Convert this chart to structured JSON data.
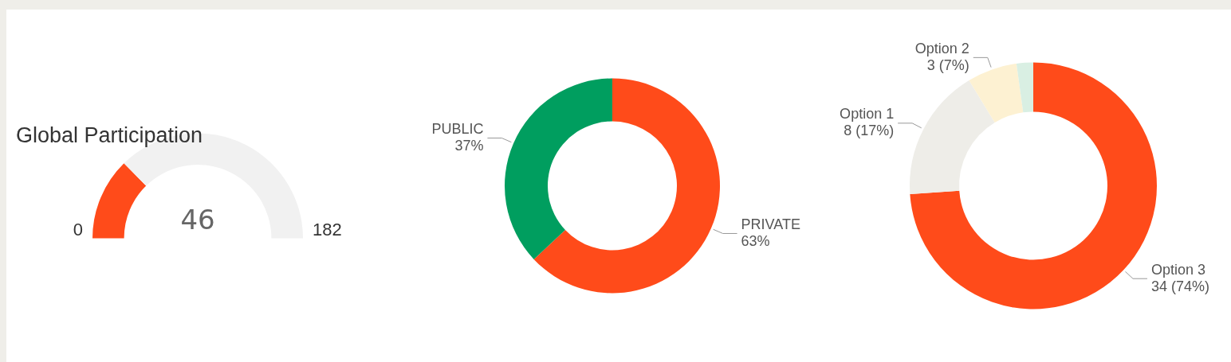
{
  "chart_data": [
    {
      "type": "other",
      "title": "Global Participation",
      "values": [
        46
      ],
      "color": "#ff4b1a",
      "annotations": [
        "0",
        "182"
      ],
      "data_labels": true
    },
    {
      "type": "donut",
      "categories": [
        "PRIVATE",
        "PUBLIC"
      ],
      "values": [
        63,
        37
      ],
      "colors": [
        "#ff4b1a",
        "#009e5f"
      ],
      "value_labels": [
        "63%",
        "37%"
      ],
      "legend": false
    },
    {
      "type": "donut",
      "categories": [
        "Option 3",
        "Option 1",
        "Option 2",
        null
      ],
      "values": [
        34,
        8,
        3,
        1
      ],
      "colors": [
        "#ff4b1a",
        "#eeede8",
        "#fdf1d2",
        "#d9efe3"
      ],
      "value_labels": [
        "34 (74%)",
        "8 (17%)",
        "3 (7%)",
        null
      ],
      "legend": false
    }
  ]
}
